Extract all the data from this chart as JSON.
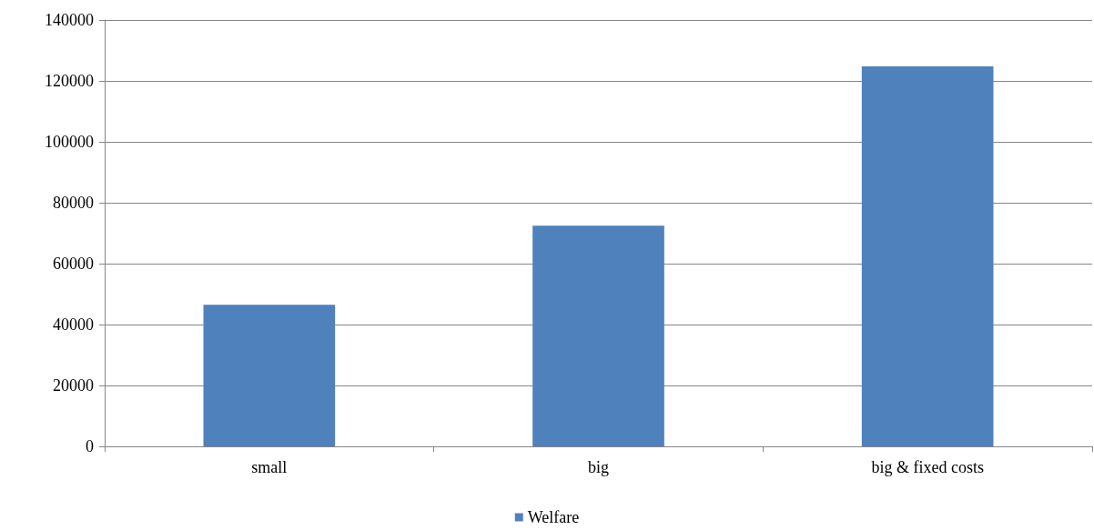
{
  "chart_data": {
    "type": "bar",
    "categories": [
      "small",
      "big",
      "big & fixed costs"
    ],
    "series": [
      {
        "name": "Welfare",
        "color": "#4f81bd",
        "values": [
          46500,
          72500,
          124800
        ]
      }
    ],
    "ylim": [
      0,
      140000
    ],
    "yticks": [
      0,
      20000,
      40000,
      60000,
      80000,
      100000,
      120000,
      140000
    ],
    "grid": "y",
    "legend": "bottom"
  }
}
